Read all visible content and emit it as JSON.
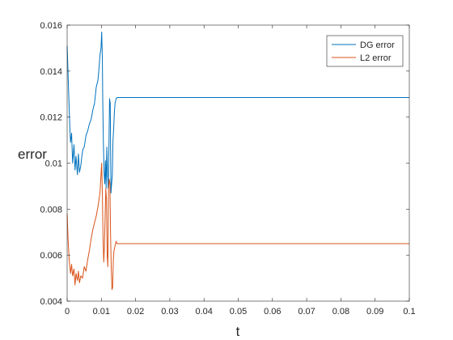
{
  "chart_data": {
    "type": "line",
    "xlabel": "t",
    "ylabel": "error",
    "xlim": [
      0,
      0.1
    ],
    "ylim": [
      0.004,
      0.016
    ],
    "xticks": [
      0,
      0.01,
      0.02,
      0.03,
      0.04,
      0.05,
      0.06,
      0.07,
      0.08,
      0.09,
      0.1
    ],
    "xtick_labels": [
      "0",
      "0.01",
      "0.02",
      "0.03",
      "0.04",
      "0.05",
      "0.06",
      "0.07",
      "0.08",
      "0.09",
      "0.1"
    ],
    "yticks": [
      0.004,
      0.006,
      0.008,
      0.01,
      0.012,
      0.014,
      0.016
    ],
    "ytick_labels": [
      "0.004",
      "0.006",
      "0.008",
      "0.01",
      "0.012",
      "0.014",
      "0.016"
    ],
    "grid": false,
    "legend_position": "top-right",
    "series": [
      {
        "name": "DG error",
        "color": "#0072BD",
        "x": [
          0,
          0.0002,
          0.0005,
          0.0008,
          0.001,
          0.0013,
          0.0016,
          0.002,
          0.0023,
          0.0026,
          0.003,
          0.0033,
          0.0036,
          0.004,
          0.0043,
          0.0046,
          0.005,
          0.0055,
          0.006,
          0.0065,
          0.007,
          0.0075,
          0.008,
          0.0085,
          0.009,
          0.0093,
          0.0096,
          0.0099,
          0.0101,
          0.0103,
          0.0104,
          0.0106,
          0.0108,
          0.011,
          0.0112,
          0.0114,
          0.0116,
          0.0118,
          0.012,
          0.0122,
          0.0124,
          0.0126,
          0.0128,
          0.013,
          0.0132,
          0.0134,
          0.0136,
          0.0138,
          0.014,
          0.0143,
          0.0146,
          0.015,
          0.02,
          0.04,
          0.06,
          0.08,
          0.1
        ],
        "y": [
          0.0151,
          0.0142,
          0.0128,
          0.0115,
          0.0109,
          0.0113,
          0.01,
          0.0108,
          0.0097,
          0.0103,
          0.0095,
          0.0104,
          0.0096,
          0.0099,
          0.0103,
          0.0106,
          0.0107,
          0.0112,
          0.0114,
          0.0117,
          0.0119,
          0.0123,
          0.0126,
          0.0133,
          0.0136,
          0.0141,
          0.0147,
          0.015,
          0.0157,
          0.0145,
          0.0128,
          0.0108,
          0.0096,
          0.0091,
          0.0101,
          0.0089,
          0.0107,
          0.0096,
          0.0089,
          0.0106,
          0.0128,
          0.0126,
          0.0087,
          0.0091,
          0.0095,
          0.011,
          0.0115,
          0.0122,
          0.0126,
          0.0128,
          0.01285,
          0.01285,
          0.01285,
          0.01285,
          0.01285,
          0.01285,
          0.01285
        ]
      },
      {
        "name": "L2 error",
        "color": "#D95319",
        "x": [
          0,
          0.0003,
          0.0006,
          0.001,
          0.0013,
          0.0016,
          0.002,
          0.0023,
          0.0026,
          0.003,
          0.0033,
          0.0036,
          0.004,
          0.0045,
          0.005,
          0.0055,
          0.006,
          0.0065,
          0.007,
          0.0075,
          0.008,
          0.0085,
          0.009,
          0.0093,
          0.0096,
          0.0099,
          0.0101,
          0.0103,
          0.0105,
          0.0107,
          0.0109,
          0.0111,
          0.0113,
          0.0115,
          0.0117,
          0.0119,
          0.0121,
          0.0123,
          0.0125,
          0.0127,
          0.0129,
          0.0131,
          0.0133,
          0.0135,
          0.0137,
          0.014,
          0.0143,
          0.0146,
          0.015,
          0.02,
          0.04,
          0.06,
          0.08,
          0.1
        ],
        "y": [
          0.0078,
          0.0066,
          0.0058,
          0.0052,
          0.0056,
          0.0051,
          0.0054,
          0.0047,
          0.0052,
          0.0049,
          0.0053,
          0.0048,
          0.0051,
          0.005,
          0.0055,
          0.0053,
          0.0058,
          0.0062,
          0.0067,
          0.0071,
          0.0074,
          0.0077,
          0.0081,
          0.0084,
          0.0087,
          0.0095,
          0.01,
          0.0086,
          0.0067,
          0.0057,
          0.0064,
          0.0077,
          0.0089,
          0.0084,
          0.006,
          0.0055,
          0.0089,
          0.0093,
          0.0091,
          0.0068,
          0.0054,
          0.0045,
          0.0046,
          0.0058,
          0.0062,
          0.0064,
          0.0066,
          0.0065,
          0.0065,
          0.0065,
          0.0065,
          0.0065,
          0.0065,
          0.0065
        ]
      }
    ]
  }
}
